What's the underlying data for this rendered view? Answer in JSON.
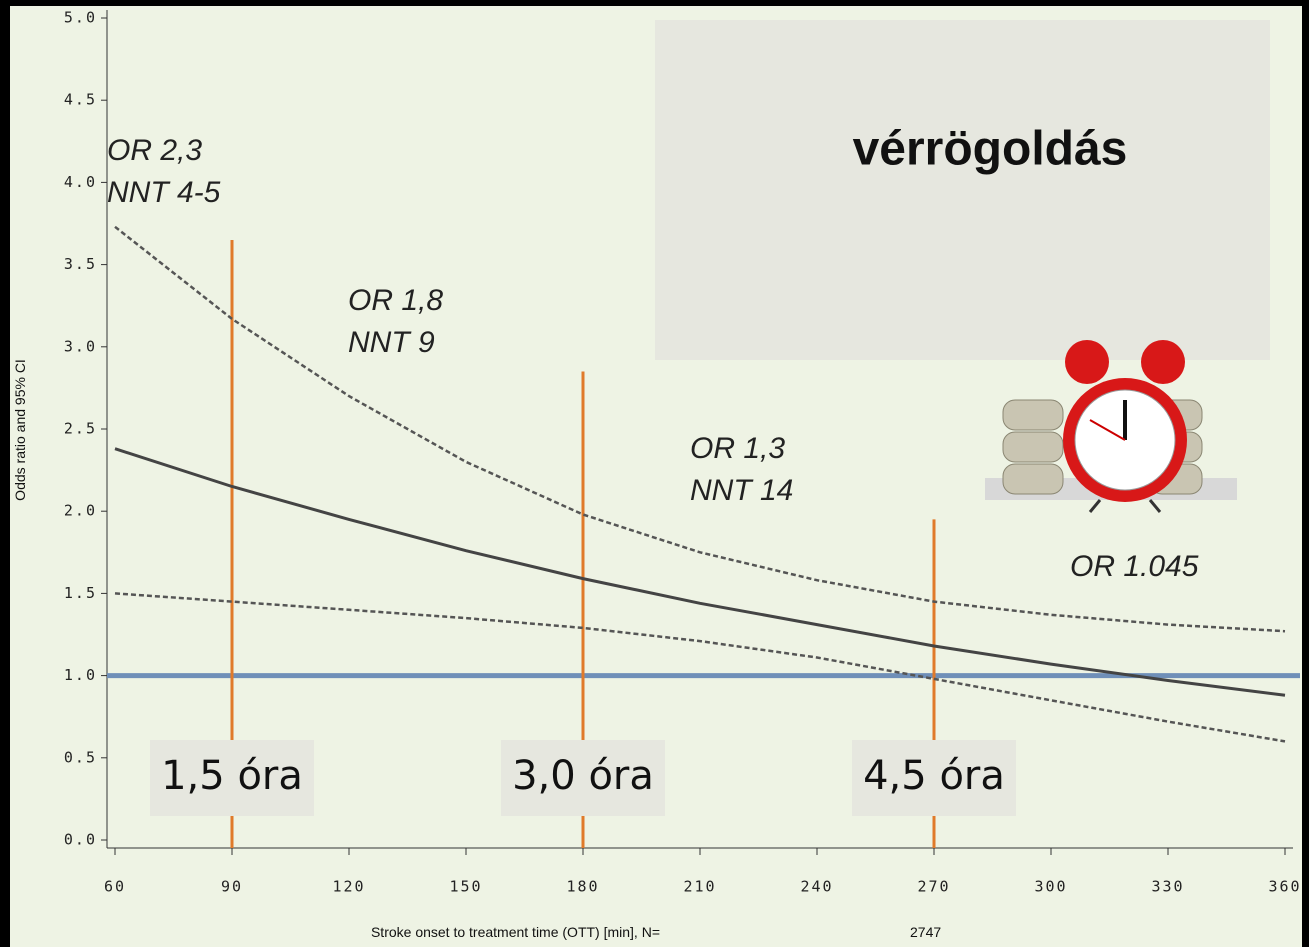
{
  "chart_data": {
    "type": "line",
    "title": "vérrögoldás",
    "y_label": "Odds ratio and 95% CI",
    "x_label": "Stroke onset to treatment time (OTT) [min], N=",
    "n": "2747",
    "x": [
      60,
      90,
      120,
      150,
      180,
      210,
      240,
      270,
      300,
      330,
      360
    ],
    "series": [
      {
        "color": "#444444",
        "dash": false,
        "values": [
          2.38,
          2.15,
          1.95,
          1.76,
          1.59,
          1.44,
          1.31,
          1.18,
          1.07,
          0.97,
          0.88
        ]
      },
      {
        "color": "#555555",
        "dash": true,
        "values": [
          3.73,
          3.17,
          2.7,
          2.3,
          1.98,
          1.75,
          1.58,
          1.45,
          1.37,
          1.31,
          1.27
        ]
      },
      {
        "color": "#555555",
        "dash": true,
        "values": [
          1.5,
          1.45,
          1.4,
          1.35,
          1.29,
          1.21,
          1.11,
          0.98,
          0.85,
          0.72,
          0.6
        ]
      }
    ],
    "reference": 1,
    "reference_color": "#6f8fb8",
    "markers": [
      {
        "x": 90,
        "top": 3.65,
        "label": "1,5 óra"
      },
      {
        "x": 180,
        "top": 2.85,
        "label": "3,0 óra"
      },
      {
        "x": 270,
        "top": 1.95,
        "label": "4,5 óra"
      }
    ],
    "marker_color": "#e07a2a",
    "annotations": [
      {
        "lines": [
          "OR 2,3",
          "NNT 4-5"
        ]
      },
      {
        "lines": [
          "OR 1,8",
          "NNT 9"
        ]
      },
      {
        "lines": [
          "OR 1,3",
          "NNT 14"
        ]
      },
      {
        "lines": [
          "OR 1.045"
        ]
      }
    ],
    "xlim": [
      60,
      360
    ],
    "ylim": [
      0,
      5
    ],
    "xticks": [
      60,
      90,
      120,
      150,
      180,
      210,
      240,
      270,
      300,
      330,
      360
    ],
    "yticks": [
      {
        "value": 0,
        "label": "0.0"
      },
      0.5,
      {
        "value": 1,
        "label": "1.0"
      },
      1.5,
      {
        "value": 2,
        "label": "2.0"
      },
      2.5,
      {
        "value": 3,
        "label": "3.0"
      },
      3.5,
      {
        "value": 4,
        "label": "4.0"
      },
      4.5,
      {
        "value": 5,
        "label": "5.0"
      }
    ]
  }
}
